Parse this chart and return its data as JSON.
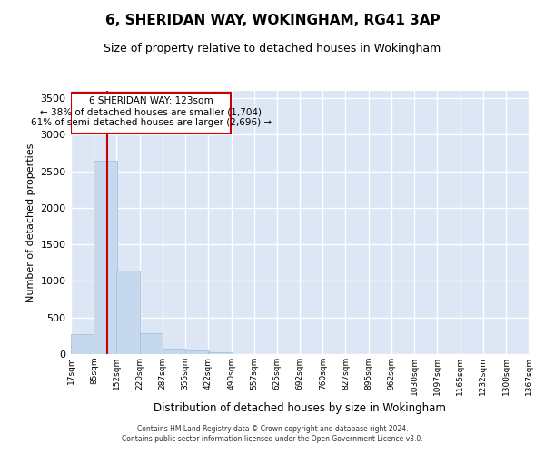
{
  "title": "6, SHERIDAN WAY, WOKINGHAM, RG41 3AP",
  "subtitle": "Size of property relative to detached houses in Wokingham",
  "xlabel": "Distribution of detached houses by size in Wokingham",
  "ylabel": "Number of detached properties",
  "bar_color": "#c5d8ee",
  "bar_edge_color": "#a0bcd8",
  "background_color": "#dce6f5",
  "grid_color": "#ffffff",
  "annotation_box_color": "#cc0000",
  "property_line_color": "#cc0000",
  "property_size": 123,
  "annotation_line1": "6 SHERIDAN WAY: 123sqm",
  "annotation_line2": "← 38% of detached houses are smaller (1,704)",
  "annotation_line3": "61% of semi-detached houses are larger (2,696) →",
  "bin_edges": [
    17,
    85,
    152,
    220,
    287,
    355,
    422,
    490,
    557,
    625,
    692,
    760,
    827,
    895,
    962,
    1030,
    1097,
    1165,
    1232,
    1300,
    1367
  ],
  "bin_labels": [
    "17sqm",
    "85sqm",
    "152sqm",
    "220sqm",
    "287sqm",
    "355sqm",
    "422sqm",
    "490sqm",
    "557sqm",
    "625sqm",
    "692sqm",
    "760sqm",
    "827sqm",
    "895sqm",
    "962sqm",
    "1030sqm",
    "1097sqm",
    "1165sqm",
    "1232sqm",
    "1300sqm",
    "1367sqm"
  ],
  "bar_heights": [
    270,
    2640,
    1140,
    280,
    80,
    50,
    30,
    0,
    0,
    0,
    0,
    0,
    0,
    0,
    0,
    0,
    0,
    0,
    0,
    0
  ],
  "ylim": [
    0,
    3600
  ],
  "yticks": [
    0,
    500,
    1000,
    1500,
    2000,
    2500,
    3000,
    3500
  ],
  "footer_line1": "Contains HM Land Registry data © Crown copyright and database right 2024.",
  "footer_line2": "Contains public sector information licensed under the Open Government Licence v3.0."
}
